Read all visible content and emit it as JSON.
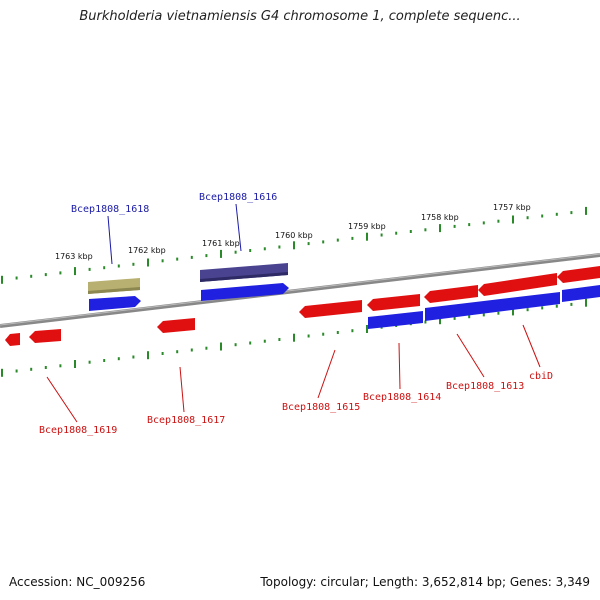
{
  "title": "Burkholderia vietnamiensis G4 chromosome 1, complete sequenc...",
  "footer": {
    "accession": "Accession: NC_009256",
    "summary": "Topology: circular; Length: 3,652,814 bp; Genes: 3,349"
  },
  "colors": {
    "forward_gene": "#2020e0",
    "reverse_gene": "#e01010",
    "forward_label": "#1a1aa8",
    "reverse_label": "#cc1111",
    "backbone": "#888888",
    "tick": "#2a8a2a",
    "highlight_olive": "#b8b070",
    "highlight_navy": "#4a4490"
  },
  "kbp_labels": [
    "1763 kbp",
    "1762 kbp",
    "1761 kbp",
    "1760 kbp",
    "1759 kbp",
    "1758 kbp",
    "1757 kbp"
  ],
  "gene_labels": {
    "forward": [
      "Bcep1808_1618",
      "Bcep1808_1616"
    ],
    "reverse": [
      "Bcep1808_1619",
      "Bcep1808_1617",
      "Bcep1808_1615",
      "Bcep1808_1614",
      "Bcep1808_1613",
      "cbiD"
    ]
  }
}
